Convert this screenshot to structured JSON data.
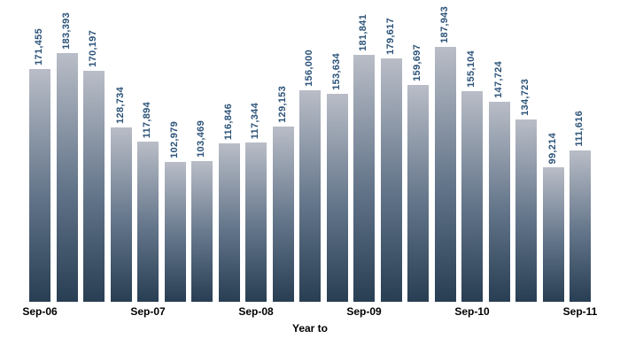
{
  "chart_data": {
    "type": "bar",
    "title": "",
    "xlabel": "Year to",
    "ylabel": "",
    "ylim": [
      0,
      200000
    ],
    "grid": false,
    "y_axis_visible": false,
    "values": [
      171455,
      183393,
      170197,
      128734,
      117894,
      102979,
      103469,
      116846,
      117344,
      129153,
      156000,
      153634,
      181841,
      179617,
      159697,
      187943,
      155104,
      147724,
      134723,
      99214,
      111616
    ],
    "value_labels": [
      "171,455",
      "183,393",
      "170,197",
      "128,734",
      "117,894",
      "102,979",
      "103,469",
      "116,846",
      "117,344",
      "129,153",
      "156,000",
      "153,634",
      "181,841",
      "179,617",
      "159,697",
      "187,943",
      "155,104",
      "147,724",
      "134,723",
      "99,214",
      "111,616"
    ],
    "x_ticks": [
      {
        "label": "Sep-06",
        "bar_index": 0
      },
      {
        "label": "Sep-07",
        "bar_index": 4
      },
      {
        "label": "Sep-08",
        "bar_index": 8
      },
      {
        "label": "Sep-09",
        "bar_index": 12
      },
      {
        "label": "Sep-10",
        "bar_index": 16
      },
      {
        "label": "Sep-11",
        "bar_index": 20
      }
    ],
    "colors": {
      "bar_gradient_top": "#b9bdc7",
      "bar_gradient_mid": "#627489",
      "bar_gradient_bottom": "#283e53",
      "value_label_text": "#2b5278",
      "axis_text": "#000000",
      "background": "#ffffff"
    }
  }
}
